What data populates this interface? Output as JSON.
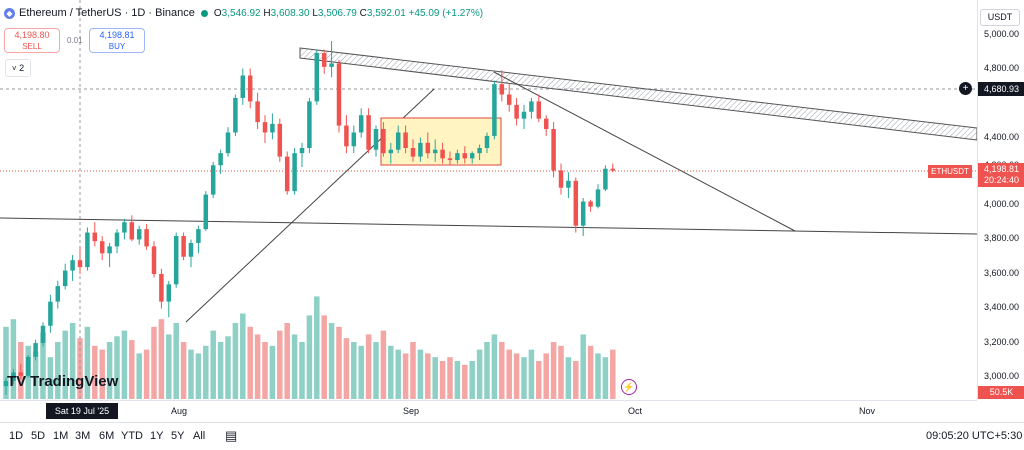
{
  "header": {
    "symbol": "Ethereum / TetherUS · 1D · Binance",
    "open_label": "O",
    "open": "3,546.92",
    "high_label": "H",
    "high": "3,608.30",
    "low_label": "L",
    "low": "3,506.79",
    "close_label": "C",
    "close": "3,592.01",
    "change": "+45.09 (+1.27%)"
  },
  "trade": {
    "sell_price": "4,198.80",
    "sell_label": "SELL",
    "spread": "0.01",
    "buy_price": "4,198.81",
    "buy_label": "BUY"
  },
  "indicators_toggle": {
    "count": "2"
  },
  "currency": "USDT",
  "price_axis": {
    "ticks": [
      "5,000.00",
      "4,800.00",
      "4,400.00",
      "4,200.00",
      "4,000.00",
      "3,800.00",
      "3,600.00",
      "3,400.00",
      "3,200.00",
      "3,000.00"
    ],
    "crosshair_price": "4,680.93",
    "last_symbol": "ETHUSDT",
    "last_price": "4,198.81",
    "countdown": "20:24:40",
    "volume_value": "50.5K"
  },
  "time_axis": {
    "crosshair_date": "Sat 19 Jul '25",
    "labels": [
      "Aug",
      "Sep",
      "Oct",
      "Nov"
    ]
  },
  "watermark": "TradingView",
  "bottom_bar": {
    "ranges": [
      "1D",
      "5D",
      "1M",
      "3M",
      "6M",
      "YTD",
      "1Y",
      "5Y",
      "All"
    ],
    "clock": "09:05:20 UTC+5:30"
  },
  "colors": {
    "up": "#26a69a",
    "down": "#ef5350",
    "vol_up": "#8fd0c6",
    "vol_down": "#f4a6a4",
    "accent": "#2962ff",
    "box_fill": "#fff4c2",
    "box_border": "#e0443b"
  },
  "chart_data": {
    "type": "candlestick",
    "x_labels": [
      "Aug",
      "Sep",
      "Oct",
      "Nov"
    ],
    "y_ticks": [
      3000,
      3200,
      3400,
      3600,
      3800,
      4000,
      4200,
      4400,
      4800,
      5000
    ],
    "ylim": [
      2870,
      5060
    ],
    "candles": [
      {
        "o": 2950,
        "h": 3000,
        "l": 2900,
        "c": 2980
      },
      {
        "o": 2980,
        "h": 3050,
        "l": 2960,
        "c": 3030
      },
      {
        "o": 3030,
        "h": 3080,
        "l": 2990,
        "c": 3010
      },
      {
        "o": 3010,
        "h": 3130,
        "l": 3000,
        "c": 3120
      },
      {
        "o": 3120,
        "h": 3220,
        "l": 3100,
        "c": 3200
      },
      {
        "o": 3200,
        "h": 3320,
        "l": 3180,
        "c": 3300
      },
      {
        "o": 3300,
        "h": 3480,
        "l": 3260,
        "c": 3440
      },
      {
        "o": 3440,
        "h": 3560,
        "l": 3400,
        "c": 3530
      },
      {
        "o": 3530,
        "h": 3660,
        "l": 3510,
        "c": 3620
      },
      {
        "o": 3620,
        "h": 3710,
        "l": 3560,
        "c": 3680
      },
      {
        "o": 3680,
        "h": 3760,
        "l": 3600,
        "c": 3640
      },
      {
        "o": 3640,
        "h": 3870,
        "l": 3620,
        "c": 3840
      },
      {
        "o": 3840,
        "h": 3900,
        "l": 3760,
        "c": 3790
      },
      {
        "o": 3790,
        "h": 3820,
        "l": 3680,
        "c": 3720
      },
      {
        "o": 3720,
        "h": 3780,
        "l": 3640,
        "c": 3760
      },
      {
        "o": 3760,
        "h": 3860,
        "l": 3720,
        "c": 3840
      },
      {
        "o": 3840,
        "h": 3920,
        "l": 3800,
        "c": 3900
      },
      {
        "o": 3900,
        "h": 3940,
        "l": 3790,
        "c": 3800
      },
      {
        "o": 3800,
        "h": 3880,
        "l": 3770,
        "c": 3860
      },
      {
        "o": 3860,
        "h": 3890,
        "l": 3740,
        "c": 3760
      },
      {
        "o": 3760,
        "h": 3790,
        "l": 3580,
        "c": 3600
      },
      {
        "o": 3600,
        "h": 3630,
        "l": 3400,
        "c": 3440
      },
      {
        "o": 3440,
        "h": 3560,
        "l": 3350,
        "c": 3540
      },
      {
        "o": 3540,
        "h": 3840,
        "l": 3520,
        "c": 3820
      },
      {
        "o": 3820,
        "h": 3840,
        "l": 3680,
        "c": 3700
      },
      {
        "o": 3700,
        "h": 3800,
        "l": 3640,
        "c": 3780
      },
      {
        "o": 3780,
        "h": 3880,
        "l": 3720,
        "c": 3860
      },
      {
        "o": 3860,
        "h": 4080,
        "l": 3850,
        "c": 4060
      },
      {
        "o": 4060,
        "h": 4250,
        "l": 4040,
        "c": 4230
      },
      {
        "o": 4230,
        "h": 4320,
        "l": 4180,
        "c": 4300
      },
      {
        "o": 4300,
        "h": 4450,
        "l": 4280,
        "c": 4420
      },
      {
        "o": 4420,
        "h": 4640,
        "l": 4400,
        "c": 4620
      },
      {
        "o": 4620,
        "h": 4790,
        "l": 4580,
        "c": 4750
      },
      {
        "o": 4750,
        "h": 4790,
        "l": 4560,
        "c": 4600
      },
      {
        "o": 4600,
        "h": 4650,
        "l": 4440,
        "c": 4480
      },
      {
        "o": 4480,
        "h": 4520,
        "l": 4360,
        "c": 4420
      },
      {
        "o": 4420,
        "h": 4530,
        "l": 4380,
        "c": 4470
      },
      {
        "o": 4470,
        "h": 4500,
        "l": 4250,
        "c": 4280
      },
      {
        "o": 4280,
        "h": 4310,
        "l": 4060,
        "c": 4080
      },
      {
        "o": 4080,
        "h": 4330,
        "l": 4060,
        "c": 4300
      },
      {
        "o": 4300,
        "h": 4360,
        "l": 4220,
        "c": 4330
      },
      {
        "o": 4330,
        "h": 4620,
        "l": 4300,
        "c": 4600
      },
      {
        "o": 4600,
        "h": 4900,
        "l": 4580,
        "c": 4880
      },
      {
        "o": 4880,
        "h": 4900,
        "l": 4760,
        "c": 4800
      },
      {
        "o": 4800,
        "h": 4950,
        "l": 4740,
        "c": 4820
      },
      {
        "o": 4820,
        "h": 4840,
        "l": 4420,
        "c": 4460
      },
      {
        "o": 4460,
        "h": 4520,
        "l": 4300,
        "c": 4340
      },
      {
        "o": 4340,
        "h": 4460,
        "l": 4300,
        "c": 4420
      },
      {
        "o": 4420,
        "h": 4560,
        "l": 4390,
        "c": 4520
      },
      {
        "o": 4520,
        "h": 4560,
        "l": 4300,
        "c": 4320
      },
      {
        "o": 4320,
        "h": 4460,
        "l": 4280,
        "c": 4440
      },
      {
        "o": 4440,
        "h": 4480,
        "l": 4280,
        "c": 4300
      },
      {
        "o": 4300,
        "h": 4360,
        "l": 4240,
        "c": 4320
      },
      {
        "o": 4320,
        "h": 4460,
        "l": 4300,
        "c": 4420
      },
      {
        "o": 4420,
        "h": 4460,
        "l": 4300,
        "c": 4330
      },
      {
        "o": 4330,
        "h": 4380,
        "l": 4250,
        "c": 4280
      },
      {
        "o": 4280,
        "h": 4390,
        "l": 4250,
        "c": 4360
      },
      {
        "o": 4360,
        "h": 4420,
        "l": 4270,
        "c": 4300
      },
      {
        "o": 4300,
        "h": 4380,
        "l": 4250,
        "c": 4320
      },
      {
        "o": 4320,
        "h": 4360,
        "l": 4240,
        "c": 4270
      },
      {
        "o": 4270,
        "h": 4310,
        "l": 4230,
        "c": 4260
      },
      {
        "o": 4260,
        "h": 4320,
        "l": 4240,
        "c": 4300
      },
      {
        "o": 4300,
        "h": 4340,
        "l": 4240,
        "c": 4270
      },
      {
        "o": 4270,
        "h": 4310,
        "l": 4240,
        "c": 4300
      },
      {
        "o": 4300,
        "h": 4350,
        "l": 4260,
        "c": 4330
      },
      {
        "o": 4330,
        "h": 4420,
        "l": 4300,
        "c": 4400
      },
      {
        "o": 4400,
        "h": 4720,
        "l": 4380,
        "c": 4700
      },
      {
        "o": 4700,
        "h": 4780,
        "l": 4600,
        "c": 4640
      },
      {
        "o": 4640,
        "h": 4700,
        "l": 4540,
        "c": 4580
      },
      {
        "o": 4580,
        "h": 4620,
        "l": 4460,
        "c": 4500
      },
      {
        "o": 4500,
        "h": 4580,
        "l": 4440,
        "c": 4540
      },
      {
        "o": 4540,
        "h": 4620,
        "l": 4500,
        "c": 4600
      },
      {
        "o": 4600,
        "h": 4640,
        "l": 4480,
        "c": 4500
      },
      {
        "o": 4500,
        "h": 4520,
        "l": 4400,
        "c": 4440
      },
      {
        "o": 4440,
        "h": 4480,
        "l": 4160,
        "c": 4200
      },
      {
        "o": 4200,
        "h": 4240,
        "l": 4060,
        "c": 4100
      },
      {
        "o": 4100,
        "h": 4190,
        "l": 4040,
        "c": 4140
      },
      {
        "o": 4140,
        "h": 4160,
        "l": 3840,
        "c": 3880
      },
      {
        "o": 3880,
        "h": 4040,
        "l": 3820,
        "c": 4020
      },
      {
        "o": 4020,
        "h": 4030,
        "l": 3960,
        "c": 3990
      },
      {
        "o": 3990,
        "h": 4120,
        "l": 3980,
        "c": 4090
      },
      {
        "o": 4090,
        "h": 4230,
        "l": 4080,
        "c": 4210
      },
      {
        "o": 4210,
        "h": 4240,
        "l": 4190,
        "c": 4199
      }
    ],
    "volume": [
      38,
      42,
      30,
      28,
      25,
      35,
      22,
      30,
      36,
      40,
      32,
      38,
      28,
      26,
      30,
      33,
      36,
      31,
      24,
      26,
      38,
      42,
      34,
      40,
      30,
      26,
      24,
      28,
      36,
      30,
      33,
      40,
      45,
      38,
      34,
      30,
      28,
      36,
      40,
      34,
      30,
      44,
      54,
      44,
      40,
      38,
      32,
      30,
      28,
      34,
      30,
      36,
      28,
      26,
      24,
      30,
      26,
      24,
      22,
      20,
      22,
      20,
      18,
      20,
      26,
      30,
      34,
      30,
      26,
      24,
      22,
      26,
      20,
      24,
      30,
      28,
      22,
      20,
      34,
      28,
      24,
      22,
      26,
      12
    ]
  }
}
